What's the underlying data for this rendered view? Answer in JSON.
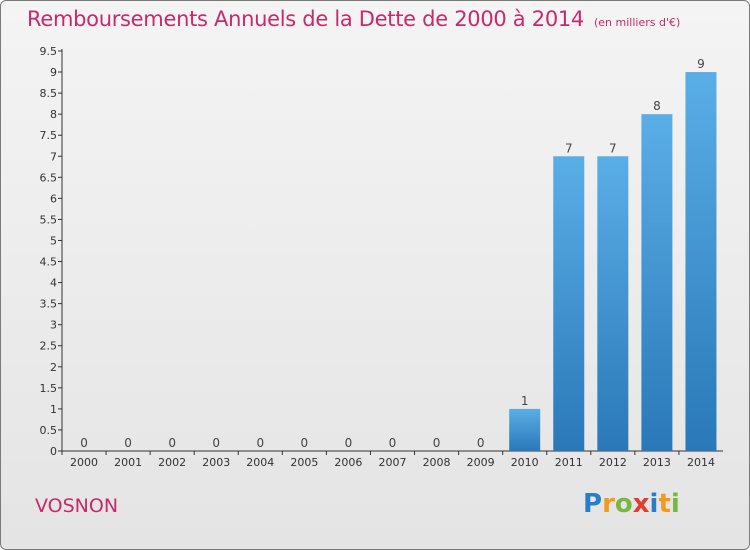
{
  "header": {
    "title": "Remboursements Annuels de la Dette de 2000 à 2014",
    "unit": "(en milliers d'€)"
  },
  "footer": {
    "commune": "VOSNON",
    "logo": [
      "P",
      "r",
      "o",
      "x",
      "i",
      "t",
      "i"
    ]
  },
  "colors": {
    "title": "#c72a6a",
    "bar_light": "#5aaee6",
    "bar_dark": "#2a78b8",
    "background_top": "#f4f4f4",
    "background_bottom": "#e4e4e4"
  },
  "chart_data": {
    "type": "bar",
    "title": "Remboursements Annuels de la Dette de 2000 à 2014",
    "subtitle": "(en milliers d'€)",
    "categories": [
      "2000",
      "2001",
      "2002",
      "2003",
      "2004",
      "2005",
      "2006",
      "2007",
      "2008",
      "2009",
      "2010",
      "2011",
      "2012",
      "2013",
      "2014"
    ],
    "values": [
      0,
      0,
      0,
      0,
      0,
      0,
      0,
      0,
      0,
      0,
      1,
      7,
      7,
      8,
      9
    ],
    "ylim": [
      0,
      9.5
    ],
    "yticks": [
      "0",
      "0.5",
      "1",
      "1.5",
      "2",
      "2.5",
      "3",
      "3.5",
      "4",
      "4.5",
      "5",
      "5.5",
      "6",
      "6.5",
      "7",
      "7.5",
      "8",
      "8.5",
      "9",
      "9.5"
    ],
    "grid": false,
    "legend": "none"
  }
}
